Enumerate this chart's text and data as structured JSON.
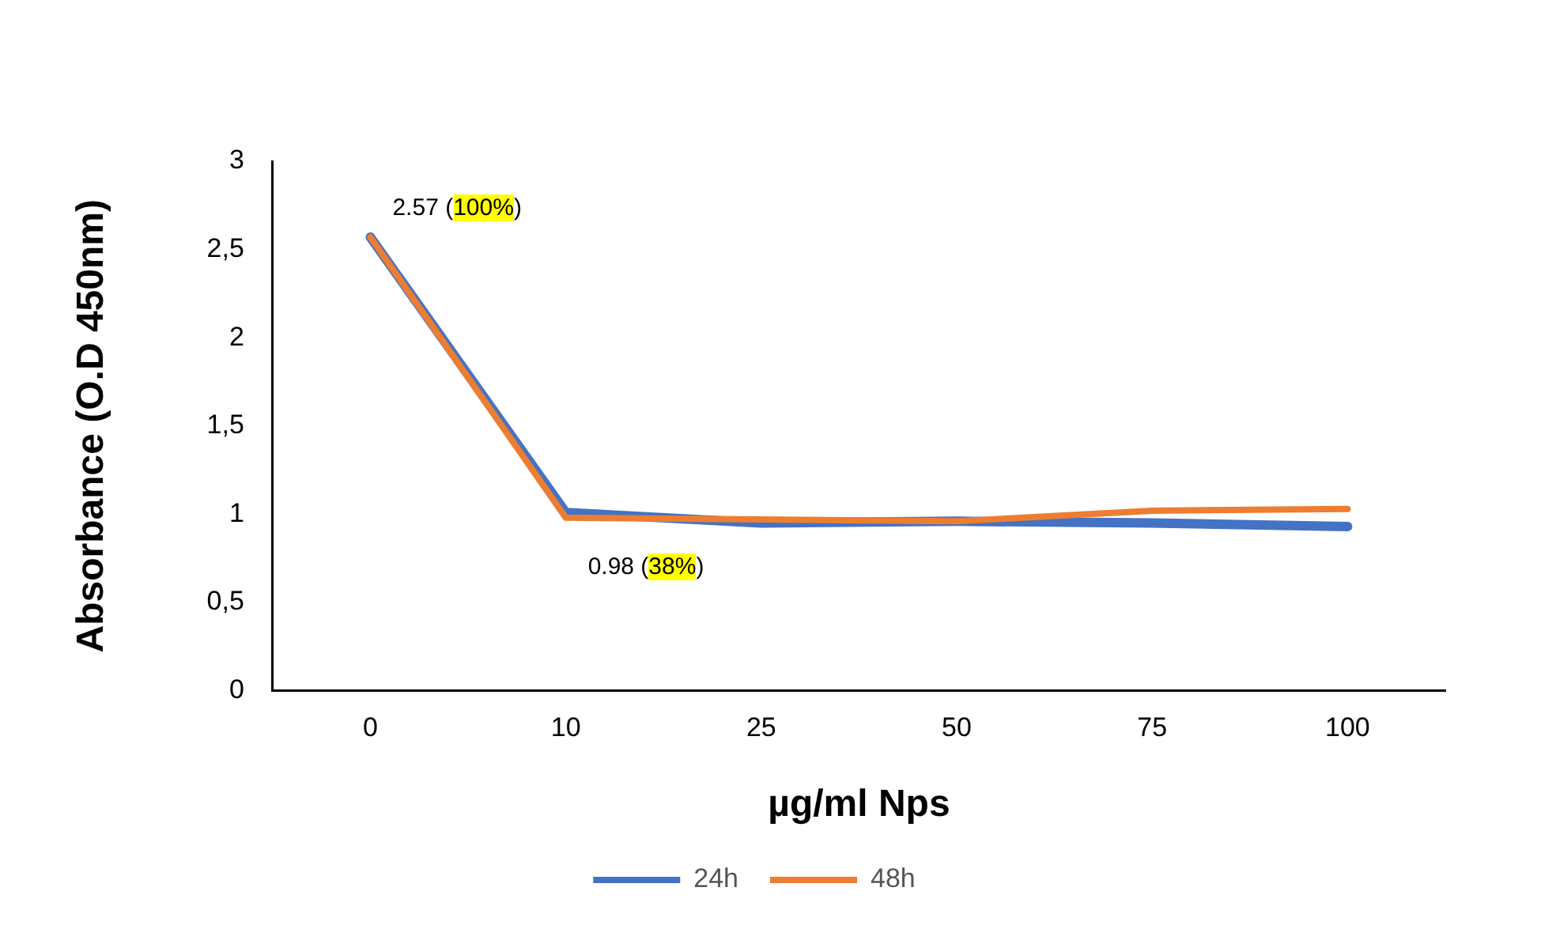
{
  "chart_data": {
    "type": "line",
    "xlabel": "µg/ml Nps",
    "ylabel": "Absorbance (O.D 450nm)",
    "categories": [
      "0",
      "10",
      "25",
      "50",
      "75",
      "100"
    ],
    "series": [
      {
        "name": "24h",
        "color": "#4472c4",
        "values": [
          2.57,
          1.01,
          0.95,
          0.96,
          0.95,
          0.93
        ]
      },
      {
        "name": "48h",
        "color": "#ed7d31",
        "values": [
          2.57,
          0.98,
          0.97,
          0.96,
          1.02,
          1.03
        ]
      }
    ],
    "ylim": [
      0,
      3
    ],
    "yticks": [
      0,
      {
        "value": 0.5,
        "label": "0,5"
      },
      1,
      {
        "value": 1.5,
        "label": "1,5"
      },
      2,
      {
        "value": 2.5,
        "label": "2,5"
      },
      3
    ],
    "grid": false,
    "legend": "bottom",
    "marker": "none",
    "line_style": "solid",
    "annotations": [
      {
        "text": "2.57 (100%)",
        "x": "0",
        "y": 2.57
      },
      {
        "text": "0.98 (38%)",
        "x": "10",
        "y": 0.98
      }
    ]
  }
}
